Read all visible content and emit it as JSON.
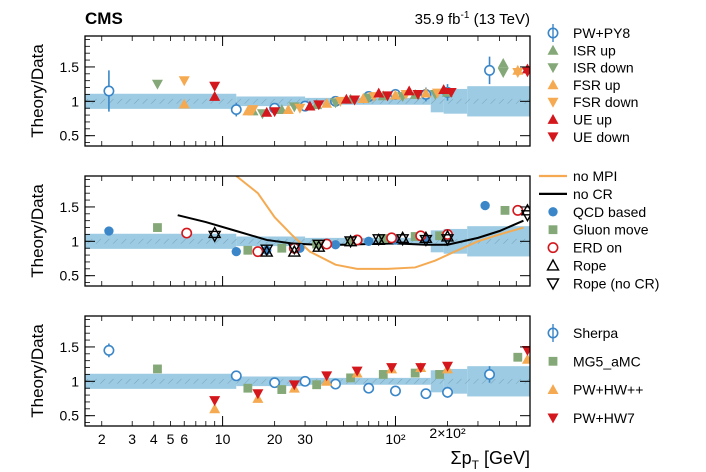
{
  "header": {
    "experiment": "CMS",
    "luminosity": "35.9 fb",
    "lumi_exponent": "-1",
    "energy": " (13 TeV)"
  },
  "colors": {
    "band": "#9ccbe3",
    "blue": "#3a86c8",
    "green": "#84a877",
    "orange": "#f5aa52",
    "red": "#d4171c",
    "black": "#000000"
  },
  "chart_data": [
    {
      "type": "scatter",
      "ylabel": "Theory/Data",
      "ylim": [
        0.35,
        1.95
      ],
      "yticks": [
        0.5,
        1,
        1.5
      ],
      "ytick_labels": [
        "0.5",
        "1",
        "1.5"
      ],
      "xscale": "log",
      "xlim": [
        1.6,
        600
      ],
      "uncertainty_band": {
        "edges": [
          1.6,
          12,
          30,
          160,
          190,
          260,
          600
        ],
        "half_width": [
          0.11,
          0.07,
          0.05,
          0.16,
          0.18,
          0.22
        ]
      },
      "legend": [
        {
          "label": "PW+PY8",
          "marker": "circle-open",
          "color": "#3a86c8"
        },
        {
          "label": "ISR up",
          "marker": "triangle-up",
          "color": "#84a877"
        },
        {
          "label": "ISR down",
          "marker": "triangle-down",
          "color": "#84a877"
        },
        {
          "label": "FSR up",
          "marker": "triangle-up",
          "color": "#f5aa52"
        },
        {
          "label": "FSR down",
          "marker": "triangle-down",
          "color": "#f5aa52"
        },
        {
          "label": "UE up",
          "marker": "triangle-up",
          "color": "#d4171c"
        },
        {
          "label": "UE down",
          "marker": "triangle-down",
          "color": "#d4171c"
        }
      ],
      "series": [
        {
          "name": "PW+PY8",
          "marker": "circle-open",
          "color": "#3a86c8",
          "x": [
            2.2,
            12,
            20,
            30,
            45,
            70,
            100,
            150,
            200,
            350
          ],
          "y": [
            1.15,
            0.88,
            0.9,
            0.93,
            1.0,
            1.07,
            1.1,
            1.1,
            1.13,
            1.45
          ],
          "err": [
            0.3,
            0.1,
            0.05,
            0.05,
            0.04,
            0.05,
            0.08,
            0.1,
            0.12,
            0.2
          ]
        },
        {
          "name": "ISR up",
          "marker": "triangle-up",
          "color": "#84a877",
          "x": [
            15,
            22,
            35,
            55,
            85,
            130,
            200,
            420
          ],
          "y": [
            0.86,
            0.88,
            0.95,
            1.03,
            1.08,
            1.1,
            1.13,
            1.55
          ]
        },
        {
          "name": "ISR down",
          "marker": "triangle-down",
          "color": "#84a877",
          "x": [
            4.2,
            17,
            26,
            45,
            70,
            110,
            170,
            420
          ],
          "y": [
            1.25,
            0.82,
            0.92,
            0.98,
            1.05,
            1.07,
            1.1,
            1.42
          ]
        },
        {
          "name": "FSR up",
          "marker": "triangle-up",
          "color": "#f5aa52",
          "x": [
            6,
            14,
            24,
            40,
            65,
            100,
            150,
            510
          ],
          "y": [
            0.96,
            0.86,
            0.88,
            0.97,
            1.04,
            1.09,
            1.12,
            1.45
          ]
        },
        {
          "name": "FSR down",
          "marker": "triangle-down",
          "color": "#f5aa52",
          "x": [
            6,
            15,
            28,
            48,
            75,
            115,
            175,
            510
          ],
          "y": [
            1.3,
            0.88,
            0.9,
            1.0,
            1.07,
            1.1,
            1.12,
            1.42
          ]
        },
        {
          "name": "UE up",
          "marker": "triangle-up",
          "color": "#d4171c",
          "x": [
            9,
            18,
            32,
            52,
            80,
            120,
            190,
            580
          ],
          "y": [
            1.07,
            0.84,
            0.93,
            1.03,
            1.12,
            1.15,
            1.17,
            1.47
          ]
        },
        {
          "name": "UE down",
          "marker": "triangle-down",
          "color": "#d4171c",
          "x": [
            9,
            20,
            36,
            58,
            90,
            135,
            210,
            580
          ],
          "y": [
            1.22,
            0.85,
            0.95,
            1.02,
            1.08,
            1.1,
            1.13,
            1.43
          ]
        }
      ]
    },
    {
      "type": "scatter",
      "ylabel": "Theory/Data",
      "ylim": [
        0.35,
        1.95
      ],
      "yticks": [
        0.5,
        1,
        1.5
      ],
      "ytick_labels": [
        "0.5",
        "1",
        "1.5"
      ],
      "xscale": "log",
      "xlim": [
        1.6,
        600
      ],
      "uncertainty_band": {
        "edges": [
          1.6,
          12,
          30,
          160,
          190,
          260,
          600
        ],
        "half_width": [
          0.11,
          0.07,
          0.05,
          0.16,
          0.18,
          0.22
        ]
      },
      "legend": [
        {
          "label": "no MPI",
          "marker": "line",
          "color": "#f5aa52"
        },
        {
          "label": "no CR",
          "marker": "line",
          "color": "#000000"
        },
        {
          "label": "QCD based",
          "marker": "circle",
          "color": "#3a86c8"
        },
        {
          "label": "Gluon move",
          "marker": "square",
          "color": "#84a877"
        },
        {
          "label": "ERD on",
          "marker": "circle-open",
          "color": "#d4171c"
        },
        {
          "label": "Rope",
          "marker": "triangle-up-open",
          "color": "#000000"
        },
        {
          "label": "Rope (no CR)",
          "marker": "triangle-down-open",
          "color": "#000000"
        }
      ],
      "lines": [
        {
          "name": "no MPI",
          "color": "#f5aa52",
          "x": [
            12,
            16,
            20,
            25,
            32,
            45,
            60,
            90,
            130,
            170,
            220,
            300,
            400,
            550
          ],
          "y": [
            1.95,
            1.7,
            1.35,
            1.1,
            0.85,
            0.66,
            0.6,
            0.6,
            0.62,
            0.72,
            0.85,
            1.0,
            1.1,
            1.2
          ]
        },
        {
          "name": "no CR",
          "color": "#000000",
          "x": [
            5.5,
            8,
            12,
            18,
            25,
            35,
            50,
            70,
            100,
            150,
            200,
            300,
            400,
            550
          ],
          "y": [
            1.38,
            1.28,
            1.15,
            1.02,
            0.97,
            0.95,
            0.95,
            0.96,
            0.97,
            0.95,
            0.95,
            1.05,
            1.15,
            1.3
          ]
        }
      ],
      "series": [
        {
          "name": "QCD based",
          "marker": "circle",
          "color": "#3a86c8",
          "x": [
            2.2,
            12,
            18,
            28,
            45,
            70,
            100,
            150,
            200,
            330
          ],
          "y": [
            1.15,
            0.85,
            0.87,
            0.9,
            0.95,
            1.0,
            1.02,
            1.04,
            1.08,
            1.52
          ]
        },
        {
          "name": "Gluon move",
          "marker": "square",
          "color": "#84a877",
          "x": [
            4.2,
            14,
            22,
            35,
            55,
            85,
            130,
            180,
            430
          ],
          "y": [
            1.2,
            0.87,
            0.9,
            0.96,
            1.0,
            1.04,
            1.07,
            1.08,
            1.45
          ]
        },
        {
          "name": "ERD on",
          "marker": "circle-open",
          "color": "#d4171c",
          "x": [
            6.2,
            16,
            26,
            40,
            60,
            95,
            140,
            200,
            510
          ],
          "y": [
            1.12,
            0.85,
            0.9,
            0.96,
            1.02,
            1.05,
            1.08,
            1.1,
            1.45
          ]
        },
        {
          "name": "Rope",
          "marker": "triangle-up-open",
          "color": "#000000",
          "x": [
            9,
            18,
            26,
            36,
            55,
            80,
            110,
            150,
            200,
            580
          ],
          "y": [
            1.12,
            0.85,
            0.85,
            0.92,
            1.0,
            1.02,
            1.05,
            1.05,
            1.07,
            1.45
          ]
        },
        {
          "name": "Rope (no CR)",
          "marker": "triangle-down-open",
          "color": "#000000",
          "x": [
            9,
            18,
            26,
            36,
            55,
            80,
            110,
            150,
            200,
            580
          ],
          "y": [
            1.08,
            0.88,
            0.9,
            0.95,
            1.0,
            1.03,
            1.03,
            1.02,
            1.03,
            1.38
          ]
        }
      ]
    },
    {
      "type": "scatter",
      "ylabel": "Theory/Data",
      "xlabel_main": "Σp",
      "xlabel_sub": "T",
      "xlabel_unit": " [GeV]",
      "ylim": [
        0.35,
        1.95
      ],
      "yticks": [
        0.5,
        1,
        1.5
      ],
      "ytick_labels": [
        "0.5",
        "1",
        "1.5"
      ],
      "xscale": "log",
      "xlim": [
        1.6,
        600
      ],
      "xticks": [
        2,
        3,
        4,
        5,
        6,
        10,
        20,
        30,
        100,
        200
      ],
      "xtick_labels": [
        "2",
        "3",
        "4",
        "5",
        "6",
        "10",
        "20",
        "30",
        "10²",
        "2×10²"
      ],
      "uncertainty_band": {
        "edges": [
          1.6,
          12,
          30,
          160,
          190,
          260,
          600
        ],
        "half_width": [
          0.11,
          0.07,
          0.05,
          0.16,
          0.18,
          0.22
        ]
      },
      "legend": [
        {
          "label": "Sherpa",
          "marker": "circle-open",
          "color": "#3a86c8"
        },
        {
          "label": "MG5_aMC",
          "marker": "square",
          "color": "#84a877"
        },
        {
          "label": "PW+HW++",
          "marker": "triangle-up",
          "color": "#f5aa52"
        },
        {
          "label": "PW+HW7",
          "marker": "triangle-down",
          "color": "#d4171c"
        }
      ],
      "series": [
        {
          "name": "Sherpa",
          "marker": "circle-open",
          "color": "#3a86c8",
          "x": [
            2.2,
            12,
            20,
            30,
            45,
            70,
            100,
            150,
            200,
            350
          ],
          "y": [
            1.45,
            1.08,
            0.98,
            1.0,
            0.96,
            0.9,
            0.86,
            0.82,
            0.84,
            1.1
          ],
          "err": [
            0.1,
            0.05,
            0.04,
            0.04,
            0.04,
            0.04,
            0.05,
            0.06,
            0.08,
            0.12
          ]
        },
        {
          "name": "MG5_aMC",
          "marker": "square",
          "color": "#84a877",
          "x": [
            4.2,
            14,
            22,
            35,
            55,
            85,
            130,
            180,
            510
          ],
          "y": [
            1.18,
            0.9,
            0.88,
            0.95,
            1.05,
            1.1,
            1.12,
            1.1,
            1.35
          ]
        },
        {
          "name": "PW+HW++",
          "marker": "triangle-up",
          "color": "#f5aa52",
          "x": [
            9,
            16,
            26,
            40,
            60,
            95,
            140,
            200,
            580
          ],
          "y": [
            0.6,
            0.75,
            0.9,
            1.0,
            1.12,
            1.18,
            1.2,
            1.18,
            1.32
          ]
        },
        {
          "name": "PW+HW7",
          "marker": "triangle-down",
          "color": "#d4171c",
          "x": [
            9,
            16,
            26,
            40,
            60,
            95,
            140,
            200,
            580
          ],
          "y": [
            0.72,
            0.82,
            0.95,
            1.08,
            1.15,
            1.2,
            1.2,
            1.22,
            1.45
          ]
        }
      ]
    }
  ]
}
